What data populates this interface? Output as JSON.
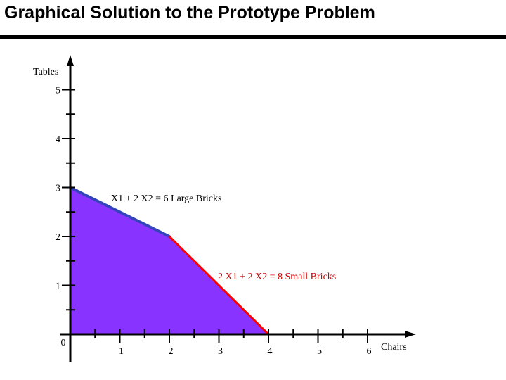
{
  "slide": {
    "title": "Graphical Solution to the Prototype Problem"
  },
  "colors": {
    "feasible_region": "#8833ff",
    "large_bricks_line": "#3344bb",
    "small_bricks_line": "#ff0000",
    "small_bricks_label": "#cc0000",
    "axis": "#000000"
  },
  "chart_data": {
    "type": "area",
    "xlabel": "Chairs",
    "ylabel": "Tables",
    "xlim": [
      0,
      6
    ],
    "ylim": [
      0,
      5
    ],
    "x_ticks": [
      "0",
      "1",
      "2",
      "3",
      "4",
      "5",
      "6"
    ],
    "y_ticks": [
      "1",
      "2",
      "3",
      "4",
      "5"
    ],
    "feasible_region": [
      [
        0,
        0
      ],
      [
        0,
        3
      ],
      [
        2,
        2
      ],
      [
        4,
        0
      ]
    ],
    "constraints": [
      {
        "label": "X1 + 2 X2 = 6 Large Bricks",
        "from": [
          0,
          3
        ],
        "to": [
          2,
          2
        ]
      },
      {
        "label": "2 X1 + 2 X2 = 8 Small Bricks",
        "from": [
          2,
          2
        ],
        "to": [
          4,
          0
        ]
      }
    ]
  }
}
